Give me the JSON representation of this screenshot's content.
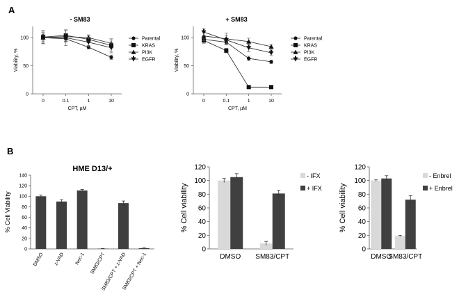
{
  "figure": {
    "panel_a_letter": "A",
    "panel_b_letter": "B"
  },
  "chart_data": [
    {
      "id": "a1",
      "type": "line",
      "title": "- SM83",
      "xlabel": "CPT, µM",
      "ylabel": "Viability, %",
      "categories": [
        "0",
        "0.1",
        "1",
        "10"
      ],
      "ylim": [
        0,
        120
      ],
      "yticks": [
        0,
        50,
        100
      ],
      "grid": false,
      "legend_position": "right",
      "series": [
        {
          "name": "Parental",
          "marker": "circle",
          "values": [
            100,
            98,
            83,
            65
          ],
          "errors": [
            6,
            5,
            3,
            4
          ]
        },
        {
          "name": "KRAS",
          "marker": "square",
          "values": [
            101,
            104,
            97,
            86
          ],
          "errors": [
            12,
            10,
            6,
            10
          ]
        },
        {
          "name": "PI3K",
          "marker": "triangle",
          "values": [
            100,
            102,
            100,
            90
          ],
          "errors": [
            8,
            10,
            5,
            8
          ]
        },
        {
          "name": "EGFR",
          "marker": "tri-down",
          "values": [
            100,
            100,
            92,
            82
          ],
          "errors": [
            10,
            14,
            8,
            9
          ]
        }
      ]
    },
    {
      "id": "a2",
      "type": "line",
      "title": "+ SM83",
      "xlabel": "CPT, µM",
      "ylabel": "Viability, %",
      "categories": [
        "0",
        "0.1",
        "1",
        "10"
      ],
      "ylim": [
        0,
        120
      ],
      "yticks": [
        0,
        50,
        100
      ],
      "grid": false,
      "legend_position": "right",
      "series": [
        {
          "name": "Parental",
          "marker": "circle",
          "values": [
            97,
            92,
            63,
            57
          ],
          "errors": [
            5,
            5,
            4,
            3
          ]
        },
        {
          "name": "KRAS",
          "marker": "square",
          "values": [
            95,
            77,
            12,
            12
          ],
          "errors": [
            5,
            4,
            2,
            2
          ]
        },
        {
          "name": "PI3K",
          "marker": "triangle",
          "values": [
            103,
            98,
            93,
            84
          ],
          "errors": [
            8,
            10,
            6,
            4
          ]
        },
        {
          "name": "EGFR",
          "marker": "tri-down",
          "values": [
            110,
            96,
            82,
            73
          ],
          "errors": [
            6,
            8,
            7,
            5
          ]
        }
      ]
    },
    {
      "id": "b1",
      "type": "bar",
      "title": "HME D13/+",
      "xlabel": "",
      "ylabel": "% Cell Viability",
      "categories": [
        "DMSO",
        "z-VAD",
        "Nec-1",
        "SM83/CPT",
        "SM83/CPT + z-VAD",
        "SM83/CPT + Nec-1"
      ],
      "ylim": [
        0,
        140
      ],
      "yticks": [
        0,
        20,
        40,
        60,
        80,
        100,
        120,
        140
      ],
      "grid": false,
      "colors": [
        "#3f3f3f"
      ],
      "series": [
        {
          "values": [
            100,
            90,
            111,
            0.5,
            87,
            1.5
          ],
          "errors": [
            2.5,
            3.5,
            2,
            0.5,
            4,
            0.5
          ]
        }
      ]
    },
    {
      "id": "b2",
      "type": "bar",
      "title": "",
      "xlabel": "",
      "ylabel": "% Cell viability",
      "categories": [
        "DMSO",
        "SM83/CPT"
      ],
      "ylim": [
        0,
        120
      ],
      "yticks": [
        0,
        20,
        40,
        60,
        80,
        100,
        120
      ],
      "grid": false,
      "legend_position": "right",
      "colors": [
        "#d9d9d9",
        "#404040"
      ],
      "series": [
        {
          "name": "- IFX",
          "values": [
            100,
            8
          ],
          "errors": [
            3,
            3
          ]
        },
        {
          "name": "+ IFX",
          "values": [
            105,
            81
          ],
          "errors": [
            5,
            5
          ]
        }
      ]
    },
    {
      "id": "b3",
      "type": "bar",
      "title": "",
      "xlabel": "",
      "ylabel": "% Cell viability",
      "categories": [
        "DMSO",
        "SM83/CPT"
      ],
      "ylim": [
        0,
        120
      ],
      "yticks": [
        0,
        20,
        40,
        60,
        80,
        100,
        120
      ],
      "grid": false,
      "legend_position": "right",
      "colors": [
        "#d9d9d9",
        "#404040"
      ],
      "series": [
        {
          "name": "- Enbrel",
          "values": [
            100,
            19
          ],
          "errors": [
            1,
            1
          ]
        },
        {
          "name": "+ Enbrel",
          "values": [
            103,
            72
          ],
          "errors": [
            4,
            6
          ]
        }
      ]
    }
  ]
}
